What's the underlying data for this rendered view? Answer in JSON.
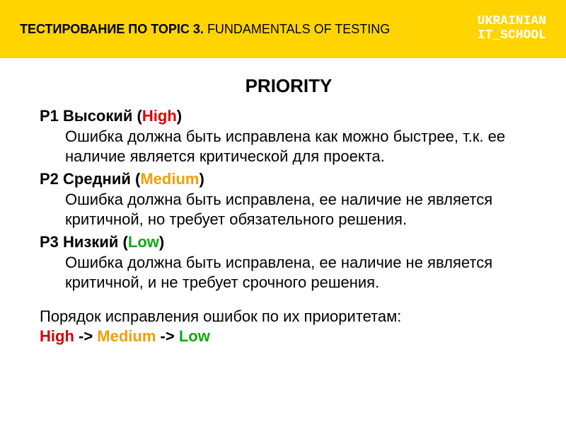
{
  "colors": {
    "banner_bg": "#ffd400",
    "banner_text": "#000000",
    "banner_right_text": "#ffffff",
    "title_text": "#000000",
    "body_text": "#000000",
    "high": "#d90000",
    "medium": "#f0a000",
    "low": "#13a813"
  },
  "banner": {
    "left_bold": "ТЕСТИРОВАНИЕ ПО TOPIC 3.",
    "left_rest": " FUNDAMENTALS OF TESTING",
    "right_line1": "UKRAINIAN",
    "right_line2": "IT_SCHOOL"
  },
  "title": "PRIORITY",
  "priorities": [
    {
      "label_prefix": "P1 Высокий (",
      "level_word": "High",
      "level_color_key": "high",
      "label_suffix": ")",
      "description": "Ошибка должна быть исправлена как можно быстрее, т.к. ее наличие является критической для проекта."
    },
    {
      "label_prefix": "P2 Средний (",
      "level_word": "Medium",
      "level_color_key": "medium",
      "label_suffix": ")",
      "description": "Ошибка должна быть исправлена, ее наличие не является критичной, но требует обязательного решения."
    },
    {
      "label_prefix": "P3 Низкий (",
      "level_word": "Low",
      "level_color_key": "low",
      "label_suffix": ")",
      "description": "Ошибка должна быть исправлена, ее наличие не является критичной, и не требует срочного решения."
    }
  ],
  "summary": {
    "intro": "Порядок исправления ошибок по их приоритетам:",
    "order": [
      {
        "word": "High",
        "color_key": "high"
      },
      {
        "word": "Medium",
        "color_key": "medium"
      },
      {
        "word": "Low",
        "color_key": "low"
      }
    ],
    "arrow": " -> "
  }
}
